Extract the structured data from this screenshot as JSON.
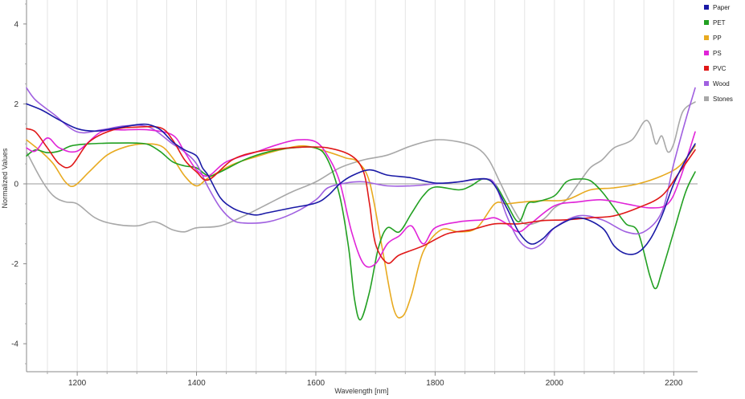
{
  "chart_data": {
    "type": "line",
    "title": "",
    "xlabel": "Wavelength [nm]",
    "ylabel": "Normalized Values",
    "xlim": [
      1115,
      2240
    ],
    "ylim": [
      -4.7,
      4.6
    ],
    "x_ticks": [
      1200,
      1400,
      1600,
      1800,
      2000,
      2200
    ],
    "y_ticks": [
      -4,
      -2,
      0,
      2,
      4
    ],
    "grid": true,
    "legend_position": "top-right",
    "series": [
      {
        "name": "Paper",
        "color": "#1a1aa6",
        "points": [
          [
            1115,
            2.0
          ],
          [
            1140,
            1.85
          ],
          [
            1170,
            1.6
          ],
          [
            1200,
            1.38
          ],
          [
            1230,
            1.32
          ],
          [
            1260,
            1.38
          ],
          [
            1300,
            1.48
          ],
          [
            1320,
            1.48
          ],
          [
            1340,
            1.35
          ],
          [
            1360,
            1.05
          ],
          [
            1380,
            0.85
          ],
          [
            1400,
            0.7
          ],
          [
            1410,
            0.4
          ],
          [
            1420,
            0.2
          ],
          [
            1440,
            -0.35
          ],
          [
            1460,
            -0.6
          ],
          [
            1480,
            -0.72
          ],
          [
            1500,
            -0.78
          ],
          [
            1520,
            -0.72
          ],
          [
            1560,
            -0.6
          ],
          [
            1600,
            -0.48
          ],
          [
            1620,
            -0.3
          ],
          [
            1640,
            0.0
          ],
          [
            1660,
            0.2
          ],
          [
            1690,
            0.35
          ],
          [
            1720,
            0.22
          ],
          [
            1760,
            0.15
          ],
          [
            1800,
            0.02
          ],
          [
            1840,
            0.05
          ],
          [
            1870,
            0.12
          ],
          [
            1895,
            0.05
          ],
          [
            1920,
            -0.6
          ],
          [
            1940,
            -1.2
          ],
          [
            1960,
            -1.5
          ],
          [
            1980,
            -1.38
          ],
          [
            2000,
            -1.1
          ],
          [
            2040,
            -0.85
          ],
          [
            2080,
            -1.1
          ],
          [
            2100,
            -1.55
          ],
          [
            2120,
            -1.75
          ],
          [
            2140,
            -1.72
          ],
          [
            2160,
            -1.4
          ],
          [
            2180,
            -0.8
          ],
          [
            2200,
            0.0
          ],
          [
            2220,
            0.6
          ],
          [
            2236,
            1.0
          ]
        ]
      },
      {
        "name": "PET",
        "color": "#22a022",
        "points": [
          [
            1115,
            0.7
          ],
          [
            1130,
            0.85
          ],
          [
            1150,
            0.78
          ],
          [
            1170,
            0.82
          ],
          [
            1190,
            0.95
          ],
          [
            1220,
            1.0
          ],
          [
            1260,
            1.02
          ],
          [
            1300,
            1.02
          ],
          [
            1320,
            0.98
          ],
          [
            1340,
            0.8
          ],
          [
            1360,
            0.55
          ],
          [
            1380,
            0.45
          ],
          [
            1400,
            0.4
          ],
          [
            1420,
            0.2
          ],
          [
            1440,
            0.3
          ],
          [
            1480,
            0.6
          ],
          [
            1520,
            0.8
          ],
          [
            1560,
            0.9
          ],
          [
            1600,
            0.9
          ],
          [
            1620,
            0.6
          ],
          [
            1640,
            -0.3
          ],
          [
            1655,
            -1.6
          ],
          [
            1665,
            -2.9
          ],
          [
            1675,
            -3.4
          ],
          [
            1690,
            -2.7
          ],
          [
            1705,
            -1.6
          ],
          [
            1720,
            -1.1
          ],
          [
            1740,
            -1.2
          ],
          [
            1760,
            -0.75
          ],
          [
            1780,
            -0.3
          ],
          [
            1800,
            -0.08
          ],
          [
            1840,
            -0.15
          ],
          [
            1860,
            -0.05
          ],
          [
            1880,
            0.12
          ],
          [
            1900,
            0.0
          ],
          [
            1920,
            -0.5
          ],
          [
            1940,
            -0.95
          ],
          [
            1955,
            -0.5
          ],
          [
            1970,
            -0.45
          ],
          [
            2000,
            -0.3
          ],
          [
            2020,
            0.05
          ],
          [
            2040,
            0.12
          ],
          [
            2060,
            0.08
          ],
          [
            2080,
            -0.2
          ],
          [
            2100,
            -0.6
          ],
          [
            2120,
            -1.0
          ],
          [
            2140,
            -1.2
          ],
          [
            2160,
            -2.3
          ],
          [
            2170,
            -2.62
          ],
          [
            2180,
            -2.2
          ],
          [
            2200,
            -1.2
          ],
          [
            2220,
            -0.2
          ],
          [
            2236,
            0.3
          ]
        ]
      },
      {
        "name": "PP",
        "color": "#e8aa20",
        "points": [
          [
            1115,
            1.1
          ],
          [
            1140,
            0.8
          ],
          [
            1160,
            0.5
          ],
          [
            1180,
            0.05
          ],
          [
            1195,
            -0.05
          ],
          [
            1220,
            0.3
          ],
          [
            1250,
            0.72
          ],
          [
            1280,
            0.92
          ],
          [
            1310,
            1.0
          ],
          [
            1340,
            0.95
          ],
          [
            1360,
            0.65
          ],
          [
            1380,
            0.2
          ],
          [
            1400,
            -0.05
          ],
          [
            1420,
            0.15
          ],
          [
            1460,
            0.48
          ],
          [
            1500,
            0.68
          ],
          [
            1540,
            0.85
          ],
          [
            1580,
            0.95
          ],
          [
            1620,
            0.8
          ],
          [
            1650,
            0.65
          ],
          [
            1670,
            0.55
          ],
          [
            1690,
            0.05
          ],
          [
            1710,
            -1.5
          ],
          [
            1730,
            -3.1
          ],
          [
            1745,
            -3.32
          ],
          [
            1760,
            -2.8
          ],
          [
            1780,
            -1.7
          ],
          [
            1810,
            -1.15
          ],
          [
            1840,
            -1.2
          ],
          [
            1870,
            -1.1
          ],
          [
            1900,
            -0.5
          ],
          [
            1920,
            -0.5
          ],
          [
            1950,
            -0.45
          ],
          [
            1980,
            -0.42
          ],
          [
            2020,
            -0.4
          ],
          [
            2060,
            -0.15
          ],
          [
            2100,
            -0.1
          ],
          [
            2140,
            0.0
          ],
          [
            2180,
            0.2
          ],
          [
            2210,
            0.45
          ],
          [
            2236,
            0.95
          ]
        ]
      },
      {
        "name": "PS",
        "color": "#e024d8",
        "points": [
          [
            1115,
            0.9
          ],
          [
            1130,
            0.82
          ],
          [
            1150,
            1.15
          ],
          [
            1170,
            0.9
          ],
          [
            1200,
            0.82
          ],
          [
            1240,
            1.3
          ],
          [
            1280,
            1.35
          ],
          [
            1320,
            1.35
          ],
          [
            1360,
            1.22
          ],
          [
            1380,
            0.8
          ],
          [
            1400,
            0.35
          ],
          [
            1420,
            0.2
          ],
          [
            1450,
            0.55
          ],
          [
            1500,
            0.8
          ],
          [
            1540,
            1.0
          ],
          [
            1570,
            1.1
          ],
          [
            1600,
            1.05
          ],
          [
            1620,
            0.7
          ],
          [
            1640,
            0.05
          ],
          [
            1660,
            -1.2
          ],
          [
            1680,
            -2.0
          ],
          [
            1700,
            -2.0
          ],
          [
            1720,
            -1.5
          ],
          [
            1740,
            -1.3
          ],
          [
            1760,
            -1.05
          ],
          [
            1780,
            -1.5
          ],
          [
            1800,
            -1.1
          ],
          [
            1840,
            -0.95
          ],
          [
            1880,
            -0.9
          ],
          [
            1900,
            -0.85
          ],
          [
            1920,
            -1.0
          ],
          [
            1940,
            -1.2
          ],
          [
            1960,
            -1.0
          ],
          [
            2000,
            -0.55
          ],
          [
            2040,
            -0.45
          ],
          [
            2080,
            -0.4
          ],
          [
            2120,
            -0.5
          ],
          [
            2160,
            -0.6
          ],
          [
            2190,
            -0.5
          ],
          [
            2210,
            0.1
          ],
          [
            2236,
            1.3
          ]
        ]
      },
      {
        "name": "PVC",
        "color": "#e01818",
        "points": [
          [
            1115,
            1.38
          ],
          [
            1130,
            1.3
          ],
          [
            1150,
            0.9
          ],
          [
            1170,
            0.5
          ],
          [
            1190,
            0.45
          ],
          [
            1220,
            1.05
          ],
          [
            1260,
            1.35
          ],
          [
            1300,
            1.42
          ],
          [
            1340,
            1.4
          ],
          [
            1360,
            1.1
          ],
          [
            1380,
            0.6
          ],
          [
            1400,
            0.3
          ],
          [
            1420,
            0.1
          ],
          [
            1460,
            0.6
          ],
          [
            1500,
            0.8
          ],
          [
            1540,
            0.88
          ],
          [
            1580,
            0.92
          ],
          [
            1620,
            0.9
          ],
          [
            1660,
            0.7
          ],
          [
            1680,
            0.3
          ],
          [
            1690,
            -0.5
          ],
          [
            1700,
            -1.5
          ],
          [
            1720,
            -1.98
          ],
          [
            1740,
            -1.78
          ],
          [
            1780,
            -1.55
          ],
          [
            1820,
            -1.25
          ],
          [
            1860,
            -1.15
          ],
          [
            1900,
            -1.0
          ],
          [
            1940,
            -1.0
          ],
          [
            1980,
            -0.92
          ],
          [
            2020,
            -0.9
          ],
          [
            2060,
            -0.85
          ],
          [
            2100,
            -0.8
          ],
          [
            2140,
            -0.6
          ],
          [
            2180,
            -0.3
          ],
          [
            2210,
            0.3
          ],
          [
            2236,
            0.85
          ]
        ]
      },
      {
        "name": "Wood",
        "color": "#a060e0",
        "points": [
          [
            1115,
            2.4
          ],
          [
            1130,
            2.1
          ],
          [
            1160,
            1.75
          ],
          [
            1200,
            1.3
          ],
          [
            1240,
            1.35
          ],
          [
            1280,
            1.45
          ],
          [
            1320,
            1.42
          ],
          [
            1360,
            1.0
          ],
          [
            1380,
            0.8
          ],
          [
            1400,
            0.5
          ],
          [
            1420,
            -0.1
          ],
          [
            1440,
            -0.6
          ],
          [
            1460,
            -0.9
          ],
          [
            1480,
            -0.98
          ],
          [
            1520,
            -0.95
          ],
          [
            1560,
            -0.75
          ],
          [
            1600,
            -0.4
          ],
          [
            1620,
            -0.1
          ],
          [
            1650,
            0.02
          ],
          [
            1680,
            0.05
          ],
          [
            1720,
            -0.05
          ],
          [
            1760,
            -0.05
          ],
          [
            1800,
            0.0
          ],
          [
            1840,
            0.05
          ],
          [
            1880,
            0.12
          ],
          [
            1900,
            0.0
          ],
          [
            1920,
            -0.8
          ],
          [
            1940,
            -1.4
          ],
          [
            1960,
            -1.62
          ],
          [
            1980,
            -1.48
          ],
          [
            2000,
            -1.1
          ],
          [
            2040,
            -0.8
          ],
          [
            2080,
            -0.9
          ],
          [
            2120,
            -1.2
          ],
          [
            2150,
            -1.2
          ],
          [
            2180,
            -0.7
          ],
          [
            2200,
            0.5
          ],
          [
            2220,
            1.6
          ],
          [
            2236,
            2.4
          ]
        ]
      },
      {
        "name": "Stones",
        "color": "#a8a8a8",
        "points": [
          [
            1115,
            0.8
          ],
          [
            1140,
            0.1
          ],
          [
            1160,
            -0.3
          ],
          [
            1180,
            -0.45
          ],
          [
            1200,
            -0.5
          ],
          [
            1230,
            -0.85
          ],
          [
            1260,
            -1.0
          ],
          [
            1300,
            -1.05
          ],
          [
            1330,
            -0.95
          ],
          [
            1360,
            -1.15
          ],
          [
            1380,
            -1.2
          ],
          [
            1400,
            -1.1
          ],
          [
            1440,
            -1.05
          ],
          [
            1480,
            -0.8
          ],
          [
            1520,
            -0.5
          ],
          [
            1560,
            -0.2
          ],
          [
            1600,
            0.05
          ],
          [
            1640,
            0.4
          ],
          [
            1680,
            0.6
          ],
          [
            1720,
            0.72
          ],
          [
            1760,
            0.95
          ],
          [
            1800,
            1.1
          ],
          [
            1840,
            1.05
          ],
          [
            1870,
            0.9
          ],
          [
            1890,
            0.6
          ],
          [
            1910,
            0.0
          ],
          [
            1930,
            -0.6
          ],
          [
            1950,
            -1.0
          ],
          [
            1980,
            -0.9
          ],
          [
            2000,
            -0.6
          ],
          [
            2020,
            -0.4
          ],
          [
            2040,
            0.0
          ],
          [
            2060,
            0.4
          ],
          [
            2080,
            0.6
          ],
          [
            2100,
            0.9
          ],
          [
            2130,
            1.1
          ],
          [
            2150,
            1.55
          ],
          [
            2160,
            1.5
          ],
          [
            2170,
            1.0
          ],
          [
            2180,
            1.2
          ],
          [
            2190,
            0.8
          ],
          [
            2200,
            1.0
          ],
          [
            2215,
            1.8
          ],
          [
            2236,
            2.05
          ]
        ]
      }
    ]
  }
}
